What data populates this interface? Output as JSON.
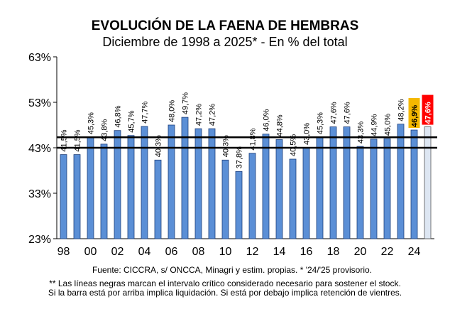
{
  "chart_data": {
    "type": "bar",
    "title": "EVOLUCIÓN DE LA FAENA DE HEMBRAS",
    "subtitle": "Diciembre de 1998 a 2025* - En % del total",
    "categories": [
      "1998",
      "1999",
      "2000",
      "2001",
      "2002",
      "2003",
      "2004",
      "2005",
      "2006",
      "2007",
      "2008",
      "2009",
      "2010",
      "2011",
      "2012",
      "2013",
      "2014",
      "2015",
      "2016",
      "2017",
      "2018",
      "2019",
      "2020",
      "2021",
      "2022",
      "2023",
      "2024",
      "2025"
    ],
    "x_tick_labels": [
      "98",
      "00",
      "02",
      "04",
      "06",
      "08",
      "10",
      "12",
      "14",
      "16",
      "18",
      "20",
      "22",
      "24"
    ],
    "values": [
      41.5,
      41.5,
      45.3,
      43.8,
      46.8,
      45.7,
      47.7,
      40.3,
      48.0,
      49.7,
      47.2,
      47.2,
      40.3,
      37.8,
      41.8,
      46.0,
      44.8,
      40.5,
      43.0,
      45.3,
      47.6,
      47.6,
      43.3,
      44.9,
      45.0,
      48.2,
      46.9,
      47.6
    ],
    "data_labels": [
      "41,5%",
      "41,5%",
      "45,3%",
      "43,8%",
      "46,8%",
      "45,7%",
      "47,7%",
      "40,3%",
      "48,0%",
      "49,7%",
      "47,2%",
      "47,2%",
      "40,3%",
      "37,8%",
      "41,8%",
      "46,0%",
      "44,8%",
      "40,5%",
      "43,0%",
      "45,3%",
      "47,6%",
      "47,6%",
      "43,3%",
      "44,9%",
      "45,0%",
      "48,2%",
      "46,9%",
      "47,6%"
    ],
    "y_ticks": [
      23,
      33,
      43,
      53,
      63
    ],
    "y_tick_labels": [
      "23%",
      "33%",
      "43%",
      "53%",
      "63%"
    ],
    "ylim": [
      23,
      63
    ],
    "critical_interval": [
      43,
      45.3
    ],
    "grid": false,
    "colors": {
      "bar": "#5b8fd6",
      "bar_provisional": "#dde6f2",
      "highlight_2024": "#f5b800",
      "highlight_2025": "#ff0000",
      "line": "#000000"
    }
  },
  "footer": {
    "source": "Fuente: CICCRA, s/ ONCCA, Minagri y estim. propias. * '24/'25  provisorio.",
    "note1": "** Las líneas negras marcan el intervalo crítico considerado necesario para sostener el stock.",
    "note2": "Si la barra está por arriba implica liquidación. Si está por debajo implica retención de vientres."
  }
}
